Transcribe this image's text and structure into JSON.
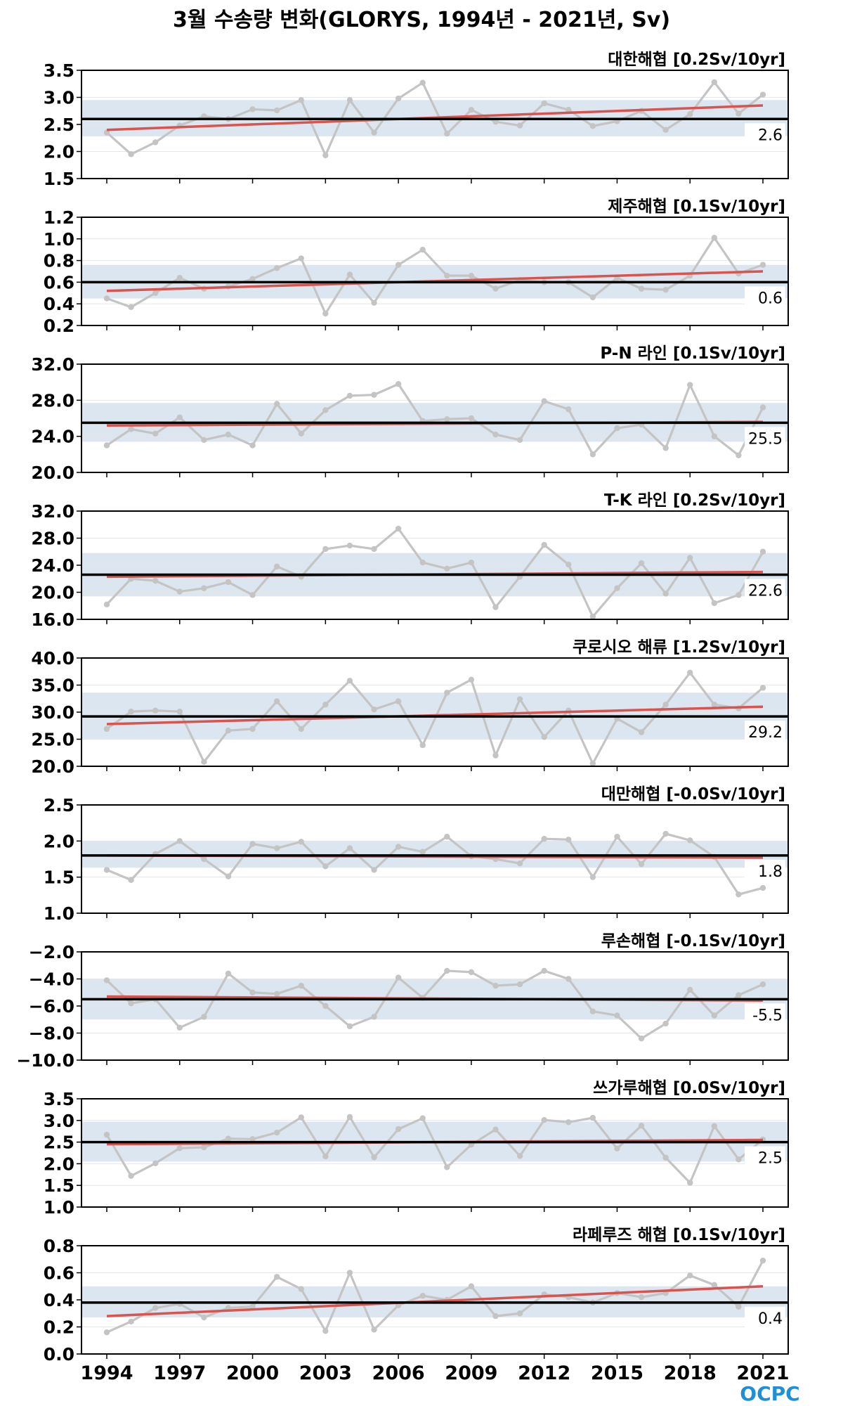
{
  "title": "3월 수송량 변화(GLORYS, 1994년 - 2021년, Sv)",
  "logo": "OCPC",
  "colors": {
    "series": "#c4c4c4",
    "trend": "#d9534f",
    "mean": "#000000",
    "band": "#dbe6f0",
    "grid": "#e6e6e6"
  },
  "chart_data": {
    "type": "line",
    "x": [
      1994,
      1995,
      1996,
      1997,
      1998,
      1999,
      2000,
      2001,
      2002,
      2003,
      2004,
      2005,
      2006,
      2007,
      2008,
      2009,
      2010,
      2011,
      2012,
      2013,
      2014,
      2015,
      2016,
      2017,
      2018,
      2019,
      2020,
      2021
    ],
    "x_ticks": [
      "1994",
      "1997",
      "2000",
      "2003",
      "2006",
      "2009",
      "2012",
      "2015",
      "2018",
      "2021"
    ],
    "panels": [
      {
        "label": "대한해협 [0.2Sv/10yr]",
        "ylim": [
          1.5,
          3.5
        ],
        "y_ticks": [
          "3.5",
          "3.0",
          "2.5",
          "2.0",
          "1.5"
        ],
        "mean": 2.6,
        "mean_label": "2.6",
        "band": [
          2.28,
          2.95
        ],
        "trend": [
          2.4,
          2.85
        ],
        "values": [
          2.35,
          1.95,
          2.17,
          2.48,
          2.65,
          2.6,
          2.78,
          2.76,
          2.95,
          1.93,
          2.95,
          2.35,
          2.98,
          3.27,
          2.33,
          2.77,
          2.55,
          2.48,
          2.89,
          2.77,
          2.47,
          2.56,
          2.75,
          2.4,
          2.69,
          3.28,
          2.7,
          3.05
        ]
      },
      {
        "label": "제주해협 [0.1Sv/10yr]",
        "ylim": [
          0.2,
          1.2
        ],
        "y_ticks": [
          "1.2",
          "1.0",
          "0.8",
          "0.6",
          "0.4",
          "0.2"
        ],
        "mean": 0.6,
        "mean_label": "0.6",
        "band": [
          0.45,
          0.76
        ],
        "trend": [
          0.52,
          0.7
        ],
        "values": [
          0.45,
          0.37,
          0.5,
          0.64,
          0.54,
          0.56,
          0.63,
          0.73,
          0.82,
          0.31,
          0.67,
          0.41,
          0.76,
          0.9,
          0.66,
          0.66,
          0.54,
          0.62,
          0.6,
          0.6,
          0.46,
          0.64,
          0.54,
          0.53,
          0.66,
          1.01,
          0.68,
          0.76
        ]
      },
      {
        "label": "P-N 라인 [0.1Sv/10yr]",
        "ylim": [
          20,
          32
        ],
        "y_ticks": [
          "32.0",
          "28.0",
          "24.0",
          "20.0"
        ],
        "mean": 25.5,
        "mean_label": "25.5",
        "band": [
          23.4,
          27.7
        ],
        "trend": [
          25.2,
          25.6
        ],
        "values": [
          23.0,
          24.8,
          24.3,
          26.1,
          23.6,
          24.2,
          23.0,
          27.6,
          24.3,
          26.9,
          28.5,
          28.6,
          29.8,
          25.7,
          25.9,
          26.0,
          24.2,
          23.6,
          27.9,
          27.0,
          22.0,
          24.9,
          25.3,
          22.7,
          29.7,
          24.0,
          21.9,
          27.2
        ]
      },
      {
        "label": "T-K 라인 [0.2Sv/10yr]",
        "ylim": [
          16,
          32
        ],
        "y_ticks": [
          "32.0",
          "28.0",
          "24.0",
          "20.0",
          "16.0"
        ],
        "mean": 22.6,
        "mean_label": "22.6",
        "band": [
          19.4,
          25.8
        ],
        "trend": [
          22.3,
          23.0
        ],
        "values": [
          18.2,
          22.0,
          21.7,
          20.1,
          20.6,
          21.5,
          19.6,
          23.8,
          22.3,
          26.4,
          26.9,
          26.4,
          29.4,
          24.4,
          23.5,
          24.4,
          17.8,
          22.3,
          27.0,
          24.1,
          16.4,
          20.6,
          24.3,
          19.8,
          25.1,
          18.4,
          19.6,
          26.0
        ]
      },
      {
        "label": "쿠로시오 해류 [1.2Sv/10yr]",
        "ylim": [
          20,
          40
        ],
        "y_ticks": [
          "40.0",
          "35.0",
          "30.0",
          "25.0",
          "20.0"
        ],
        "mean": 29.2,
        "mean_label": "29.2",
        "band": [
          25.0,
          33.6
        ],
        "trend": [
          27.8,
          31.0
        ],
        "values": [
          26.9,
          30.1,
          30.3,
          30.1,
          20.8,
          26.6,
          26.9,
          32.0,
          26.9,
          31.4,
          35.8,
          30.5,
          32.0,
          23.9,
          33.6,
          36.0,
          22.0,
          32.4,
          25.4,
          30.3,
          20.5,
          28.8,
          26.3,
          31.4,
          37.3,
          31.4,
          30.7,
          34.5
        ]
      },
      {
        "label": "대만해협 [-0.0Sv/10yr]",
        "ylim": [
          1.0,
          2.5
        ],
        "y_ticks": [
          "2.5",
          "2.0",
          "1.5",
          "1.0"
        ],
        "mean": 1.8,
        "mean_label": "1.8",
        "band": [
          1.63,
          2.0
        ],
        "trend": [
          1.8,
          1.77
        ],
        "values": [
          1.6,
          1.46,
          1.82,
          2.0,
          1.75,
          1.51,
          1.96,
          1.9,
          1.99,
          1.65,
          1.9,
          1.6,
          1.92,
          1.85,
          2.06,
          1.79,
          1.75,
          1.69,
          2.03,
          2.02,
          1.5,
          2.06,
          1.68,
          2.1,
          2.01,
          1.78,
          1.26,
          1.35
        ]
      },
      {
        "label": "루손해협 [-0.1Sv/10yr]",
        "ylim": [
          -10.0,
          -2.0
        ],
        "y_ticks": [
          "−2.0",
          "−4.0",
          "−6.0",
          "−8.0",
          "−10.0"
        ],
        "mean": -5.5,
        "mean_label": "-5.5",
        "band": [
          -7.0,
          -4.0
        ],
        "trend": [
          -5.3,
          -5.6
        ],
        "values": [
          -4.1,
          -5.8,
          -5.5,
          -7.6,
          -6.8,
          -3.6,
          -5.0,
          -5.1,
          -4.5,
          -6.0,
          -7.5,
          -6.8,
          -3.9,
          -5.4,
          -3.4,
          -3.5,
          -4.5,
          -4.4,
          -3.4,
          -4.0,
          -6.4,
          -6.7,
          -8.4,
          -7.3,
          -4.8,
          -6.7,
          -5.2,
          -4.4
        ]
      },
      {
        "label": "쓰가루해협 [0.0Sv/10yr]",
        "ylim": [
          1.0,
          3.5
        ],
        "y_ticks": [
          "3.5",
          "3.0",
          "2.5",
          "2.0",
          "1.5",
          "1.0"
        ],
        "mean": 2.5,
        "mean_label": "2.5",
        "band": [
          2.05,
          2.97
        ],
        "trend": [
          2.45,
          2.55
        ],
        "values": [
          2.67,
          1.72,
          2.01,
          2.36,
          2.38,
          2.58,
          2.57,
          2.72,
          3.07,
          2.17,
          3.08,
          2.15,
          2.8,
          3.05,
          1.92,
          2.44,
          2.79,
          2.18,
          3.01,
          2.96,
          3.06,
          2.35,
          2.88,
          2.14,
          1.56,
          2.87,
          2.1,
          2.56
        ]
      },
      {
        "label": "라페루즈 해협 [0.1Sv/10yr]",
        "ylim": [
          0.0,
          0.8
        ],
        "y_ticks": [
          "0.8",
          "0.6",
          "0.4",
          "0.2",
          "0.0"
        ],
        "mean": 0.38,
        "mean_label": "0.4",
        "band": [
          0.27,
          0.5
        ],
        "trend": [
          0.28,
          0.5
        ],
        "values": [
          0.16,
          0.24,
          0.34,
          0.37,
          0.27,
          0.34,
          0.35,
          0.57,
          0.48,
          0.17,
          0.6,
          0.18,
          0.36,
          0.43,
          0.4,
          0.5,
          0.28,
          0.3,
          0.44,
          0.42,
          0.38,
          0.45,
          0.42,
          0.45,
          0.58,
          0.51,
          0.35,
          0.69
        ]
      }
    ]
  }
}
